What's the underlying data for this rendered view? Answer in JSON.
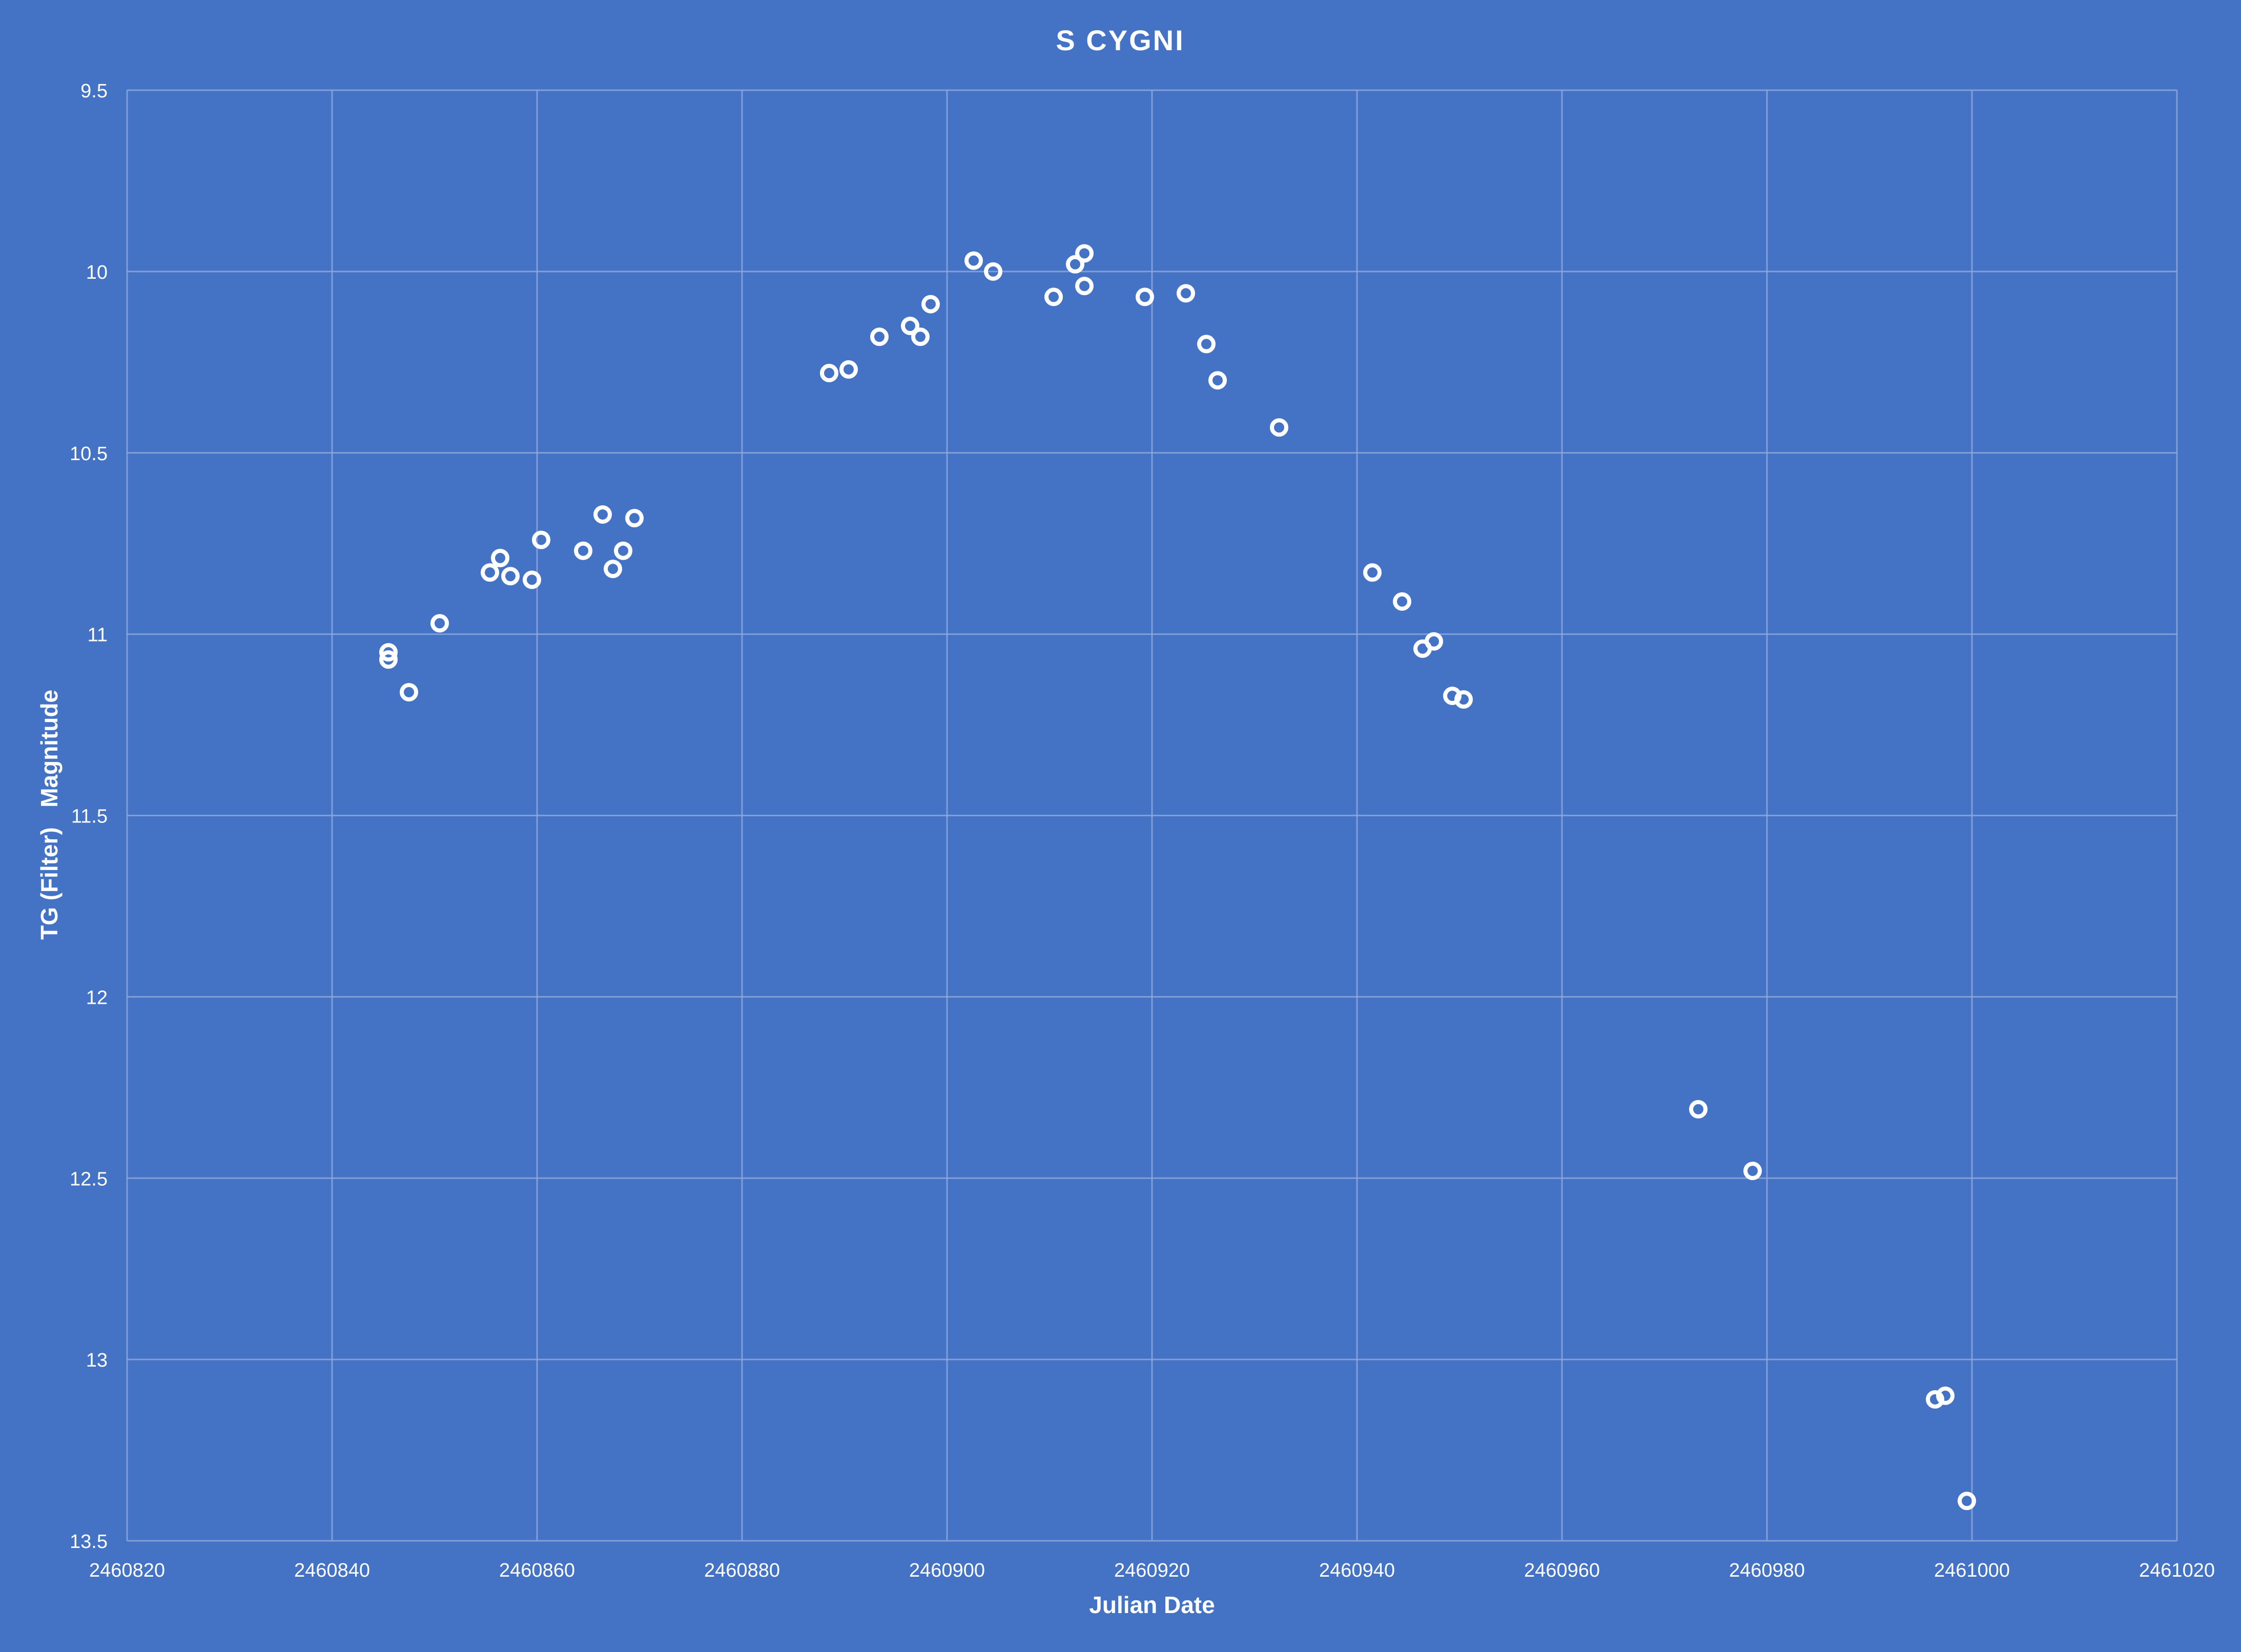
{
  "chart_data": {
    "type": "scatter",
    "title": "S CYGNI",
    "xlabel": "Julian Date",
    "ylabel": "TG (Filter)   Magnitude",
    "xlim": [
      2460820,
      2461020
    ],
    "ylim": [
      9.5,
      13.5
    ],
    "y_inverted": true,
    "grid": true,
    "xticks": [
      2460820,
      2460840,
      2460860,
      2460880,
      2460900,
      2460920,
      2460940,
      2460960,
      2460980,
      2461000,
      2461020
    ],
    "yticks": [
      9.5,
      10,
      10.5,
      11,
      11.5,
      12,
      12.5,
      13,
      13.5
    ],
    "marker": "hollow-circle",
    "colors": {
      "background": "#4472C4",
      "marker": "#FFFFFF",
      "grid": "#8FAADC"
    },
    "points": [
      [
        2460845.5,
        11.05
      ],
      [
        2460845.5,
        11.07
      ],
      [
        2460847.5,
        11.16
      ],
      [
        2460850.5,
        10.97
      ],
      [
        2460855.4,
        10.83
      ],
      [
        2460856.4,
        10.79
      ],
      [
        2460857.4,
        10.84
      ],
      [
        2460859.5,
        10.85
      ],
      [
        2460860.4,
        10.74
      ],
      [
        2460864.5,
        10.77
      ],
      [
        2460866.4,
        10.67
      ],
      [
        2460867.4,
        10.82
      ],
      [
        2460868.4,
        10.77
      ],
      [
        2460869.5,
        10.68
      ],
      [
        2460888.5,
        10.28
      ],
      [
        2460890.4,
        10.27
      ],
      [
        2460893.4,
        10.18
      ],
      [
        2460896.4,
        10.15
      ],
      [
        2460897.4,
        10.18
      ],
      [
        2460898.4,
        10.09
      ],
      [
        2460902.6,
        9.97
      ],
      [
        2460904.5,
        10.0
      ],
      [
        2460910.4,
        10.07
      ],
      [
        2460912.5,
        9.98
      ],
      [
        2460913.4,
        9.95
      ],
      [
        2460913.4,
        10.04
      ],
      [
        2460919.3,
        10.07
      ],
      [
        2460923.3,
        10.06
      ],
      [
        2460925.3,
        10.2
      ],
      [
        2460926.4,
        10.3
      ],
      [
        2460932.4,
        10.43
      ],
      [
        2460941.5,
        10.83
      ],
      [
        2460944.4,
        10.91
      ],
      [
        2460946.4,
        11.04
      ],
      [
        2460947.5,
        11.02
      ],
      [
        2460949.3,
        11.17
      ],
      [
        2460950.4,
        11.18
      ],
      [
        2460973.3,
        12.31
      ],
      [
        2460978.6,
        12.48
      ],
      [
        2460996.4,
        13.11
      ],
      [
        2460997.4,
        13.1
      ],
      [
        2460999.5,
        13.39
      ]
    ]
  }
}
